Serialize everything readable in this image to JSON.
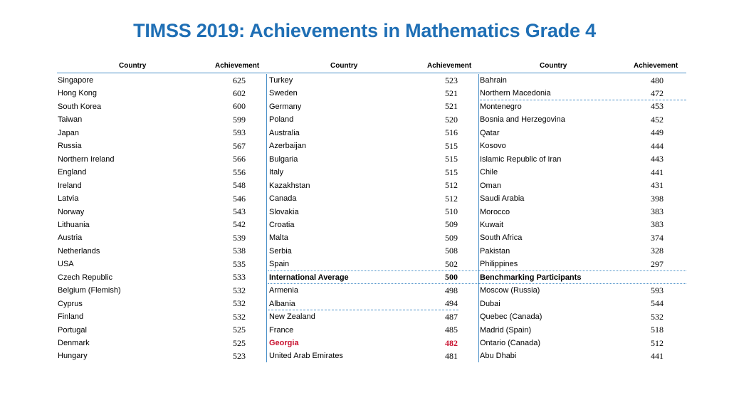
{
  "title": "TIMSS 2019: Achievements in Mathematics Grade 4",
  "headers": {
    "country": "Country",
    "achievement": "Achievement"
  },
  "col1": [
    {
      "country": "Singapore",
      "score": "625"
    },
    {
      "country": "Hong Kong",
      "score": "602"
    },
    {
      "country": "South Korea",
      "score": "600"
    },
    {
      "country": "Taiwan",
      "score": "599"
    },
    {
      "country": "Japan",
      "score": "593"
    },
    {
      "country": "Russia",
      "score": "567"
    },
    {
      "country": "Northern Ireland",
      "score": "566"
    },
    {
      "country": "England",
      "score": "556"
    },
    {
      "country": "Ireland",
      "score": "548"
    },
    {
      "country": "Latvia",
      "score": "546"
    },
    {
      "country": "Norway",
      "score": "543"
    },
    {
      "country": "Lithuania",
      "score": "542"
    },
    {
      "country": "Austria",
      "score": "539"
    },
    {
      "country": "Netherlands",
      "score": "538"
    },
    {
      "country": "USA",
      "score": "535"
    },
    {
      "country": "Czech Republic",
      "score": "533"
    },
    {
      "country": "Belgium (Flemish)",
      "score": "532"
    },
    {
      "country": "Cyprus",
      "score": "532"
    },
    {
      "country": "Finland",
      "score": "532"
    },
    {
      "country": "Portugal",
      "score": "525"
    },
    {
      "country": "Denmark",
      "score": "525"
    },
    {
      "country": "Hungary",
      "score": "523"
    }
  ],
  "col2": [
    {
      "country": "Turkey",
      "score": "523"
    },
    {
      "country": "Sweden",
      "score": "521"
    },
    {
      "country": "Germany",
      "score": "521"
    },
    {
      "country": "Poland",
      "score": "520"
    },
    {
      "country": "Australia",
      "score": "516"
    },
    {
      "country": "Azerbaijan",
      "score": "515"
    },
    {
      "country": "Bulgaria",
      "score": "515"
    },
    {
      "country": "Italy",
      "score": "515"
    },
    {
      "country": "Kazakhstan",
      "score": "512"
    },
    {
      "country": "Canada",
      "score": "512"
    },
    {
      "country": "Slovakia",
      "score": "510"
    },
    {
      "country": "Croatia",
      "score": "509"
    },
    {
      "country": "Malta",
      "score": "509"
    },
    {
      "country": "Serbia",
      "score": "508"
    },
    {
      "country": "Spain",
      "score": "502"
    },
    {
      "country": "International Average",
      "score": "500"
    },
    {
      "country": "Armenia",
      "score": "498"
    },
    {
      "country": "Albania",
      "score": "494"
    },
    {
      "country": "New Zealand",
      "score": "487"
    },
    {
      "country": "France",
      "score": "485"
    },
    {
      "country": "Georgia",
      "score": "482"
    },
    {
      "country": "United Arab Emirates",
      "score": "481"
    }
  ],
  "col3": [
    {
      "country": "Bahrain",
      "score": "480"
    },
    {
      "country": "Northern Macedonia",
      "score": "472"
    },
    {
      "country": "Montenegro",
      "score": "453"
    },
    {
      "country": "Bosnia and Herzegovina",
      "score": "452"
    },
    {
      "country": "Qatar",
      "score": "449"
    },
    {
      "country": "Kosovo",
      "score": "444"
    },
    {
      "country": "Islamic Republic of Iran",
      "score": "443"
    },
    {
      "country": "Chile",
      "score": "441"
    },
    {
      "country": "Oman",
      "score": "431"
    },
    {
      "country": "Saudi Arabia",
      "score": "398"
    },
    {
      "country": "Morocco",
      "score": "383"
    },
    {
      "country": "Kuwait",
      "score": "383"
    },
    {
      "country": "South Africa",
      "score": "374"
    },
    {
      "country": "Pakistan",
      "score": "328"
    },
    {
      "country": "Philippines",
      "score": "297"
    },
    {
      "country": "Benchmarking Participants",
      "score": ""
    },
    {
      "country": "Moscow (Russia)",
      "score": "593"
    },
    {
      "country": "Dubai",
      "score": "544"
    },
    {
      "country": "Quebec (Canada)",
      "score": "532"
    },
    {
      "country": "Madrid (Spain)",
      "score": "518"
    },
    {
      "country": "Ontario (Canada)",
      "score": "512"
    },
    {
      "country": "Abu Dhabi",
      "score": "441"
    }
  ],
  "colors": {
    "title": "#1f6fb5",
    "rule": "#4a90c8",
    "highlight": "#c8102e"
  }
}
